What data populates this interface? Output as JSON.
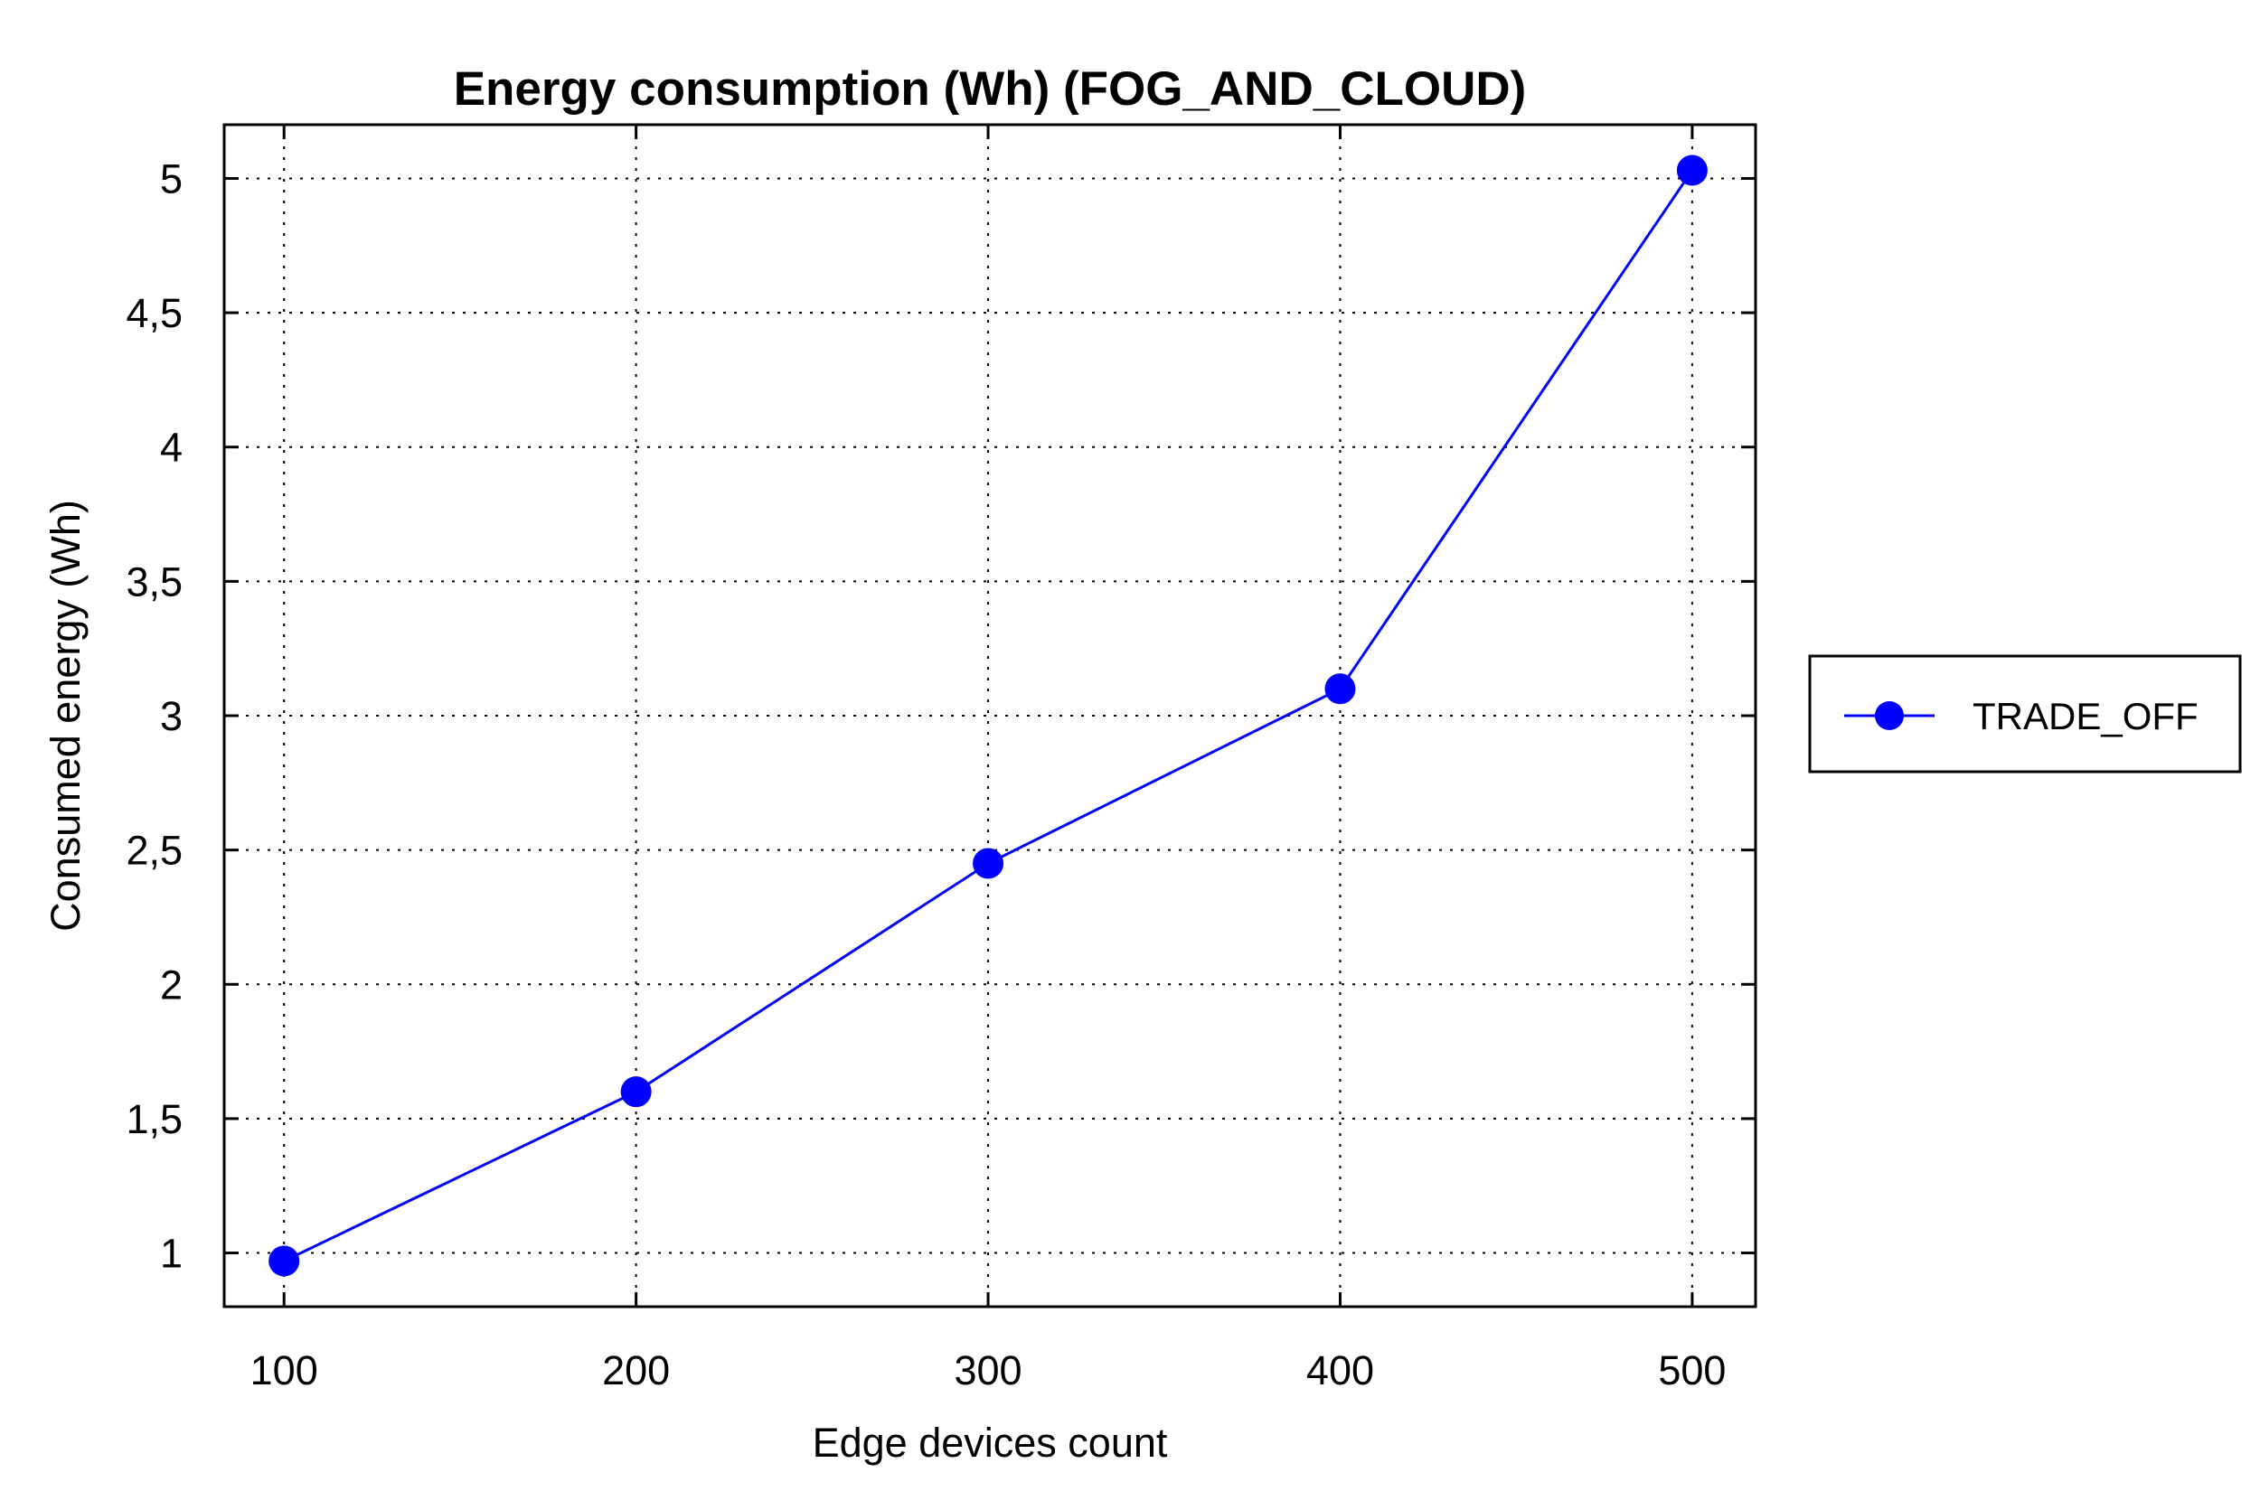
{
  "chart_data": {
    "type": "line",
    "title": "Energy consumption (Wh) (FOG_AND_CLOUD)",
    "xlabel": "Edge devices count",
    "ylabel": "Consumed energy (Wh)",
    "x": [
      100,
      200,
      300,
      400,
      500
    ],
    "x_tick_labels": [
      "100",
      "200",
      "300",
      "400",
      "500"
    ],
    "y_ticks": [
      1,
      1.5,
      2,
      2.5,
      3,
      3.5,
      4,
      4.5,
      5
    ],
    "y_tick_labels": [
      "1",
      "1,5",
      "2",
      "2,5",
      "3",
      "3,5",
      "4",
      "4,5",
      "5"
    ],
    "xlim": [
      83,
      518
    ],
    "ylim": [
      0.8,
      5.2
    ],
    "grid": true,
    "legend_position": "right-outside",
    "series": [
      {
        "name": "TRADE_OFF",
        "values": [
          0.97,
          1.6,
          2.45,
          3.1,
          5.03
        ],
        "color": "#0000ff",
        "marker": "circle"
      }
    ]
  }
}
